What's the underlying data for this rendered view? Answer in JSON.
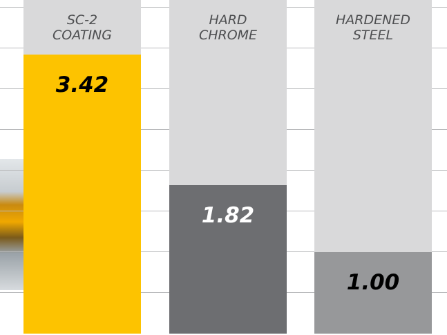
{
  "chart_data": {
    "type": "bar",
    "categories": [
      "SC-2 COATING",
      "HARD CHROME",
      "HARDENED STEEL"
    ],
    "values": [
      3.42,
      1.82,
      1.0
    ],
    "value_labels": [
      "3.42",
      "1.82",
      "1.00"
    ],
    "colors": [
      "#fdc300",
      "#6d6e71",
      "#97989a"
    ],
    "value_label_colors": [
      "#000000",
      "#ffffff",
      "#000000"
    ]
  }
}
